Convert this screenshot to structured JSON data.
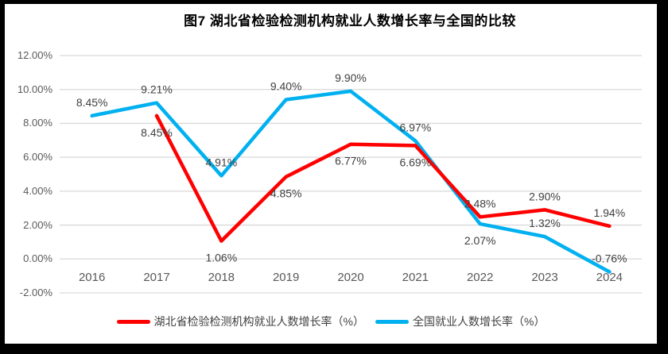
{
  "colors": {
    "frame": "#000000",
    "background": "#FFFFFF",
    "gridline": "#D9D9D9",
    "axis_text": "#595959",
    "data_label_text": "#3F3F3F",
    "title_text": "#000000"
  },
  "chart_data": {
    "type": "line",
    "title": "图7 湖北省检验检测机构就业人数增长率与全国的比较",
    "categories": [
      "2016",
      "2017",
      "2018",
      "2019",
      "2020",
      "2021",
      "2022",
      "2023",
      "2024"
    ],
    "series": [
      {
        "id": "hubei",
        "name": "湖北省检验检测机构就业人数增长率（%）",
        "color": "#FF0000",
        "values": [
          null,
          8.45,
          1.06,
          4.85,
          6.77,
          6.69,
          2.48,
          2.9,
          1.94
        ],
        "labels": [
          null,
          "8.45%",
          "1.06%",
          "4.85%",
          "6.77%",
          "6.69%",
          "2.48%",
          "2.90%",
          "1.94%"
        ],
        "label_pos": [
          null,
          "below",
          "below",
          "below",
          "below",
          "below",
          "above",
          "above",
          "above"
        ]
      },
      {
        "id": "national",
        "name": "全国就业人数增长率（%）",
        "color": "#00B0F0",
        "values": [
          8.45,
          9.21,
          4.91,
          9.4,
          9.9,
          6.97,
          2.07,
          1.32,
          -0.76
        ],
        "labels": [
          "8.45%",
          "9.21%",
          "4.91%",
          "9.40%",
          "9.90%",
          "6.97%",
          "2.07%",
          "1.32%",
          "-0.76%"
        ],
        "label_pos": [
          "above",
          "above",
          "above",
          "above",
          "above",
          "above",
          "below",
          "above",
          "above"
        ]
      }
    ],
    "y_axis": {
      "ticks": [
        "12.00%",
        "10.00%",
        "8.00%",
        "6.00%",
        "4.00%",
        "2.00%",
        "0.00%",
        "-2.00%"
      ],
      "max": 12,
      "min": -2,
      "step": 2
    },
    "grid": true,
    "legend_position": "bottom"
  }
}
